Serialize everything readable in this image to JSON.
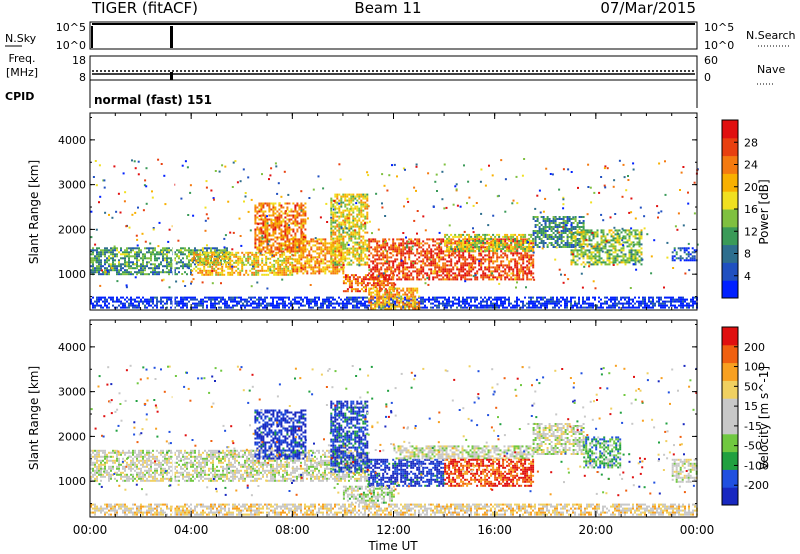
{
  "header": {
    "title": "TIGER (fitACF)",
    "beam": "Beam 11",
    "date": "07/Mar/2015"
  },
  "status_panels": {
    "nsky_label": "N.Sky",
    "nsky_ticks": [
      "10^5",
      "10^0"
    ],
    "nsearch_label": "N.Search",
    "nsearch_ticks": [
      "10^5",
      "10^0"
    ],
    "freq_label_1": "Freq.",
    "freq_label_2": "[MHz]",
    "freq_ticks": [
      "18",
      "8"
    ],
    "nave_label": "Nave",
    "nave_ticks": [
      "60",
      "0"
    ],
    "cpid_label": "CPID",
    "cpid_value": "normal (fast) 151"
  },
  "chart_data": [
    {
      "type": "heatmap",
      "title": "",
      "xlabel": "",
      "ylabel": "Slant Range [km]",
      "x_ticks": [
        "00:00",
        "04:00",
        "08:00",
        "12:00",
        "16:00",
        "20:00",
        "00:00"
      ],
      "xlim_hours": [
        0,
        24
      ],
      "y_ticks": [
        "1000",
        "2000",
        "3000",
        "4000"
      ],
      "ylim": [
        200,
        4600
      ],
      "colorbar_label": "Power [dB]",
      "colorbar_ticks": [
        "28",
        "24",
        "20",
        "16",
        "12",
        "8",
        "4"
      ],
      "colorbar_colors": [
        "#0020ff",
        "#2050c0",
        "#2e6e8e",
        "#3a9a58",
        "#7fc040",
        "#f0e020",
        "#f8b000",
        "#f47a10",
        "#e84010",
        "#e01010"
      ],
      "bands": [
        {
          "t": [
            0.0,
            5.5
          ],
          "r": [
            1200,
            1600
          ],
          "level": 0.35
        },
        {
          "t": [
            0.0,
            4.0
          ],
          "r": [
            1000,
            1200
          ],
          "level": 0.3
        },
        {
          "t": [
            4.0,
            8.0
          ],
          "r": [
            1000,
            1500
          ],
          "level": 0.6
        },
        {
          "t": [
            6.5,
            8.5
          ],
          "r": [
            1500,
            2600
          ],
          "level": 0.75
        },
        {
          "t": [
            8.0,
            10.0
          ],
          "r": [
            1000,
            1800
          ],
          "level": 0.7
        },
        {
          "t": [
            9.5,
            11.0
          ],
          "r": [
            1200,
            2800
          ],
          "level": 0.55
        },
        {
          "t": [
            10.0,
            12.0
          ],
          "r": [
            600,
            1000
          ],
          "level": 0.8
        },
        {
          "t": [
            11.0,
            17.5
          ],
          "r": [
            900,
            1800
          ],
          "level": 0.85
        },
        {
          "t": [
            14.0,
            17.5
          ],
          "r": [
            1500,
            1900
          ],
          "level": 0.5
        },
        {
          "t": [
            17.5,
            19.5
          ],
          "r": [
            1600,
            2300
          ],
          "level": 0.3
        },
        {
          "t": [
            19.0,
            21.8
          ],
          "r": [
            1200,
            2000
          ],
          "level": 0.45
        },
        {
          "t": [
            23.0,
            24.0
          ],
          "r": [
            1300,
            1600
          ],
          "level": 0.15
        },
        {
          "t": [
            0.0,
            24.0
          ],
          "r": [
            250,
            500
          ],
          "level": 0.05
        },
        {
          "t": [
            11.0,
            13.0
          ],
          "r": [
            250,
            700
          ],
          "level": 0.65
        }
      ]
    },
    {
      "type": "heatmap",
      "title": "",
      "xlabel": "Time UT",
      "ylabel": "Slant Range [km]",
      "x_ticks": [
        "00:00",
        "04:00",
        "08:00",
        "12:00",
        "16:00",
        "20:00",
        "00:00"
      ],
      "xlim_hours": [
        0,
        24
      ],
      "y_ticks": [
        "1000",
        "2000",
        "3000",
        "4000"
      ],
      "ylim": [
        200,
        4600
      ],
      "colorbar_label": "Velocity [m s^-1]",
      "colorbar_ticks": [
        "200",
        "100",
        "50",
        "15",
        "-15",
        "-50",
        "-100",
        "-200"
      ],
      "colorbar_colors": [
        "#1828c0",
        "#2050e0",
        "#20a040",
        "#70c840",
        "#c8c8c8",
        "#c8c8c8",
        "#f0d060",
        "#f8a020",
        "#f06010",
        "#e01010"
      ],
      "bands": [
        {
          "t": [
            0.0,
            11.0
          ],
          "r": [
            1000,
            1700
          ],
          "level": 0.5
        },
        {
          "t": [
            6.5,
            8.5
          ],
          "r": [
            1500,
            2600
          ],
          "level": 0.05
        },
        {
          "t": [
            9.5,
            11.0
          ],
          "r": [
            1200,
            2800
          ],
          "level": 0.1
        },
        {
          "t": [
            11.0,
            14.0
          ],
          "r": [
            900,
            1500
          ],
          "level": 0.05
        },
        {
          "t": [
            12.0,
            17.5
          ],
          "r": [
            1500,
            1800
          ],
          "level": 0.5
        },
        {
          "t": [
            14.0,
            17.5
          ],
          "r": [
            900,
            1500
          ],
          "level": 0.9
        },
        {
          "t": [
            17.5,
            19.5
          ],
          "r": [
            1600,
            2300
          ],
          "level": 0.5
        },
        {
          "t": [
            19.5,
            21.0
          ],
          "r": [
            1300,
            2000
          ],
          "level": 0.3
        },
        {
          "t": [
            23.0,
            24.0
          ],
          "r": [
            1000,
            1500
          ],
          "level": 0.5
        },
        {
          "t": [
            10.0,
            12.0
          ],
          "r": [
            500,
            900
          ],
          "level": 0.45
        },
        {
          "t": [
            0.0,
            24.0
          ],
          "r": [
            250,
            500
          ],
          "level": 0.6
        }
      ]
    }
  ]
}
